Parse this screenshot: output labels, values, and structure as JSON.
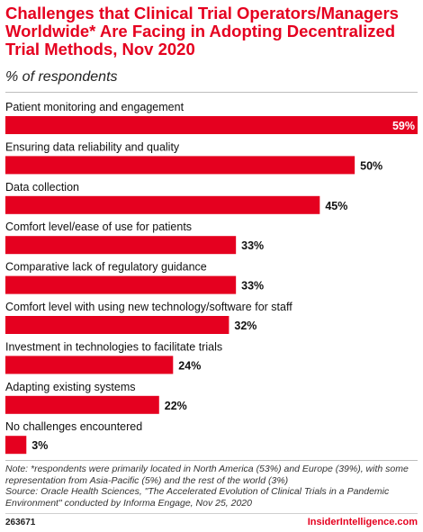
{
  "header": {
    "title": "Challenges that Clinical Trial Operators/Managers Worldwide* Are Facing in Adopting Decentralized Trial Methods, Nov 2020",
    "subtitle": "% of respondents"
  },
  "chart_data": {
    "type": "bar",
    "orientation": "horizontal",
    "title": "Challenges that Clinical Trial Operators/Managers Worldwide* Are Facing in Adopting Decentralized Trial Methods, Nov 2020",
    "subtitle": "% of respondents",
    "categories": [
      "Patient monitoring and engagement",
      "Ensuring data reliability and quality",
      "Data collection",
      "Comfort level/ease of use for patients",
      "Comparative lack of regulatory guidance",
      "Comfort level with using new technology/software for staff",
      "Investment in technologies to facilitate trials",
      "Adapting existing systems",
      "No challenges encountered"
    ],
    "values": [
      59,
      50,
      45,
      33,
      33,
      32,
      24,
      22,
      3
    ],
    "value_labels": [
      "59%",
      "50%",
      "45%",
      "33%",
      "33%",
      "32%",
      "24%",
      "22%",
      "3%"
    ],
    "xlim": [
      0,
      59
    ],
    "bar_color": "#e5001f",
    "grid": false,
    "legend": "none"
  },
  "footer": {
    "note": "Note: *respondents were primarily located in North America (53%) and Europe (39%), with some representation from Asia-Pacific (5%) and the rest of the world (3%)",
    "source": "Source: Oracle Health Sciences, \"The Accelerated Evolution of Clinical Trials in a Pandemic Environment\" conducted by Informa Engage, Nov 25, 2020",
    "chart_id": "263671",
    "brand": "InsiderIntelligence.com"
  }
}
